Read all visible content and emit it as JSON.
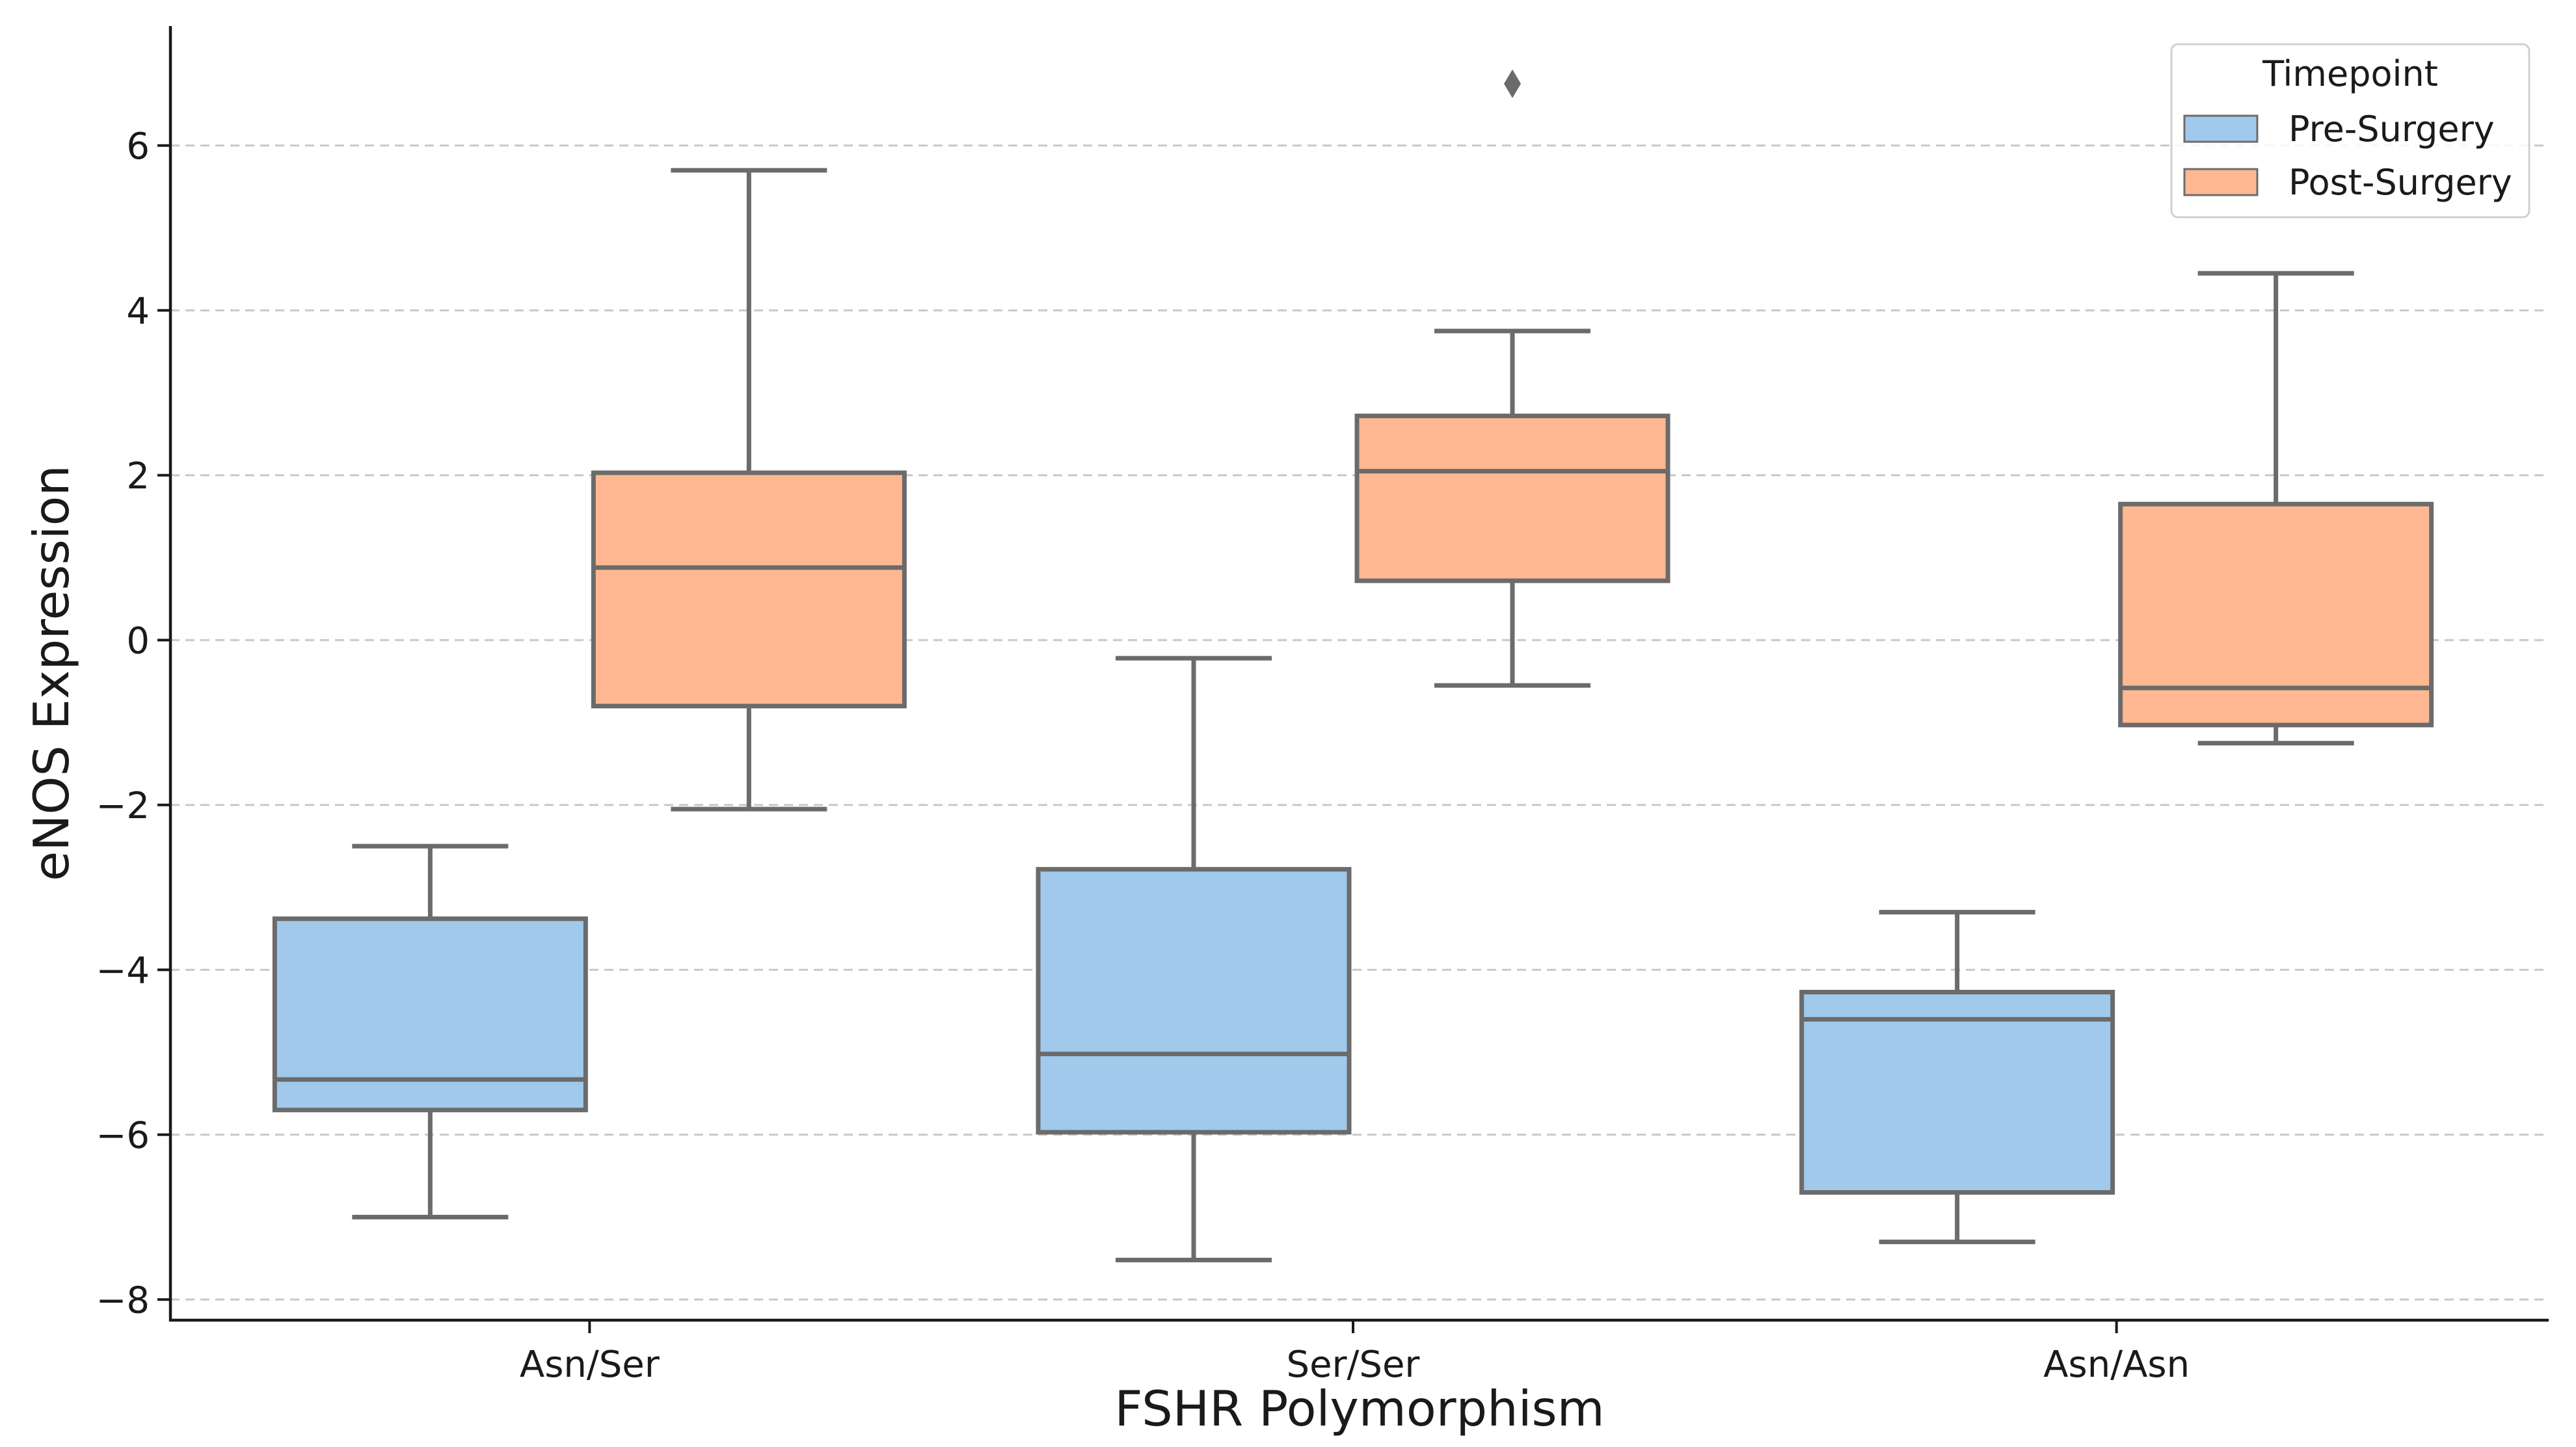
{
  "chart_data": {
    "type": "box",
    "title": "",
    "xlabel": "FSHR Polymorphism",
    "ylabel": "eNOS Expression",
    "ylim": [
      -8.25,
      7.45
    ],
    "yticks": [
      6,
      4,
      2,
      0,
      -2,
      -4,
      -6,
      -8
    ],
    "ytick_labels": [
      "6",
      "4",
      "2",
      "0",
      "−2",
      "−4",
      "−6",
      "−8"
    ],
    "grid": "horizontal dashed",
    "categories": [
      "Asn/Ser",
      "Ser/Ser",
      "Asn/Asn"
    ],
    "legend": {
      "title": "Timepoint",
      "placement": "top-right",
      "entries": [
        "Pre-Surgery",
        "Post-Surgery"
      ]
    },
    "series": [
      {
        "name": "Pre-Surgery",
        "color": "#a0c9ec",
        "boxes": [
          {
            "category": "Asn/Ser",
            "whisker_low": -7.0,
            "q1": -5.7,
            "median": -5.33,
            "q3": -3.38,
            "whisker_high": -2.5,
            "outliers": []
          },
          {
            "category": "Ser/Ser",
            "whisker_low": -7.52,
            "q1": -5.97,
            "median": -5.02,
            "q3": -2.78,
            "whisker_high": -0.22,
            "outliers": []
          },
          {
            "category": "Asn/Asn",
            "whisker_low": -7.3,
            "q1": -6.7,
            "median": -4.6,
            "q3": -4.27,
            "whisker_high": -3.3,
            "outliers": []
          }
        ]
      },
      {
        "name": "Post-Surgery",
        "color": "#ffb891",
        "boxes": [
          {
            "category": "Asn/Ser",
            "whisker_low": -2.05,
            "q1": -0.8,
            "median": 0.88,
            "q3": 2.03,
            "whisker_high": 5.7,
            "outliers": []
          },
          {
            "category": "Ser/Ser",
            "whisker_low": -0.55,
            "q1": 0.72,
            "median": 2.05,
            "q3": 2.72,
            "whisker_high": 3.75,
            "outliers": [
              6.75
            ]
          },
          {
            "category": "Asn/Asn",
            "whisker_low": -1.25,
            "q1": -1.03,
            "median": -0.58,
            "q3": 1.65,
            "whisker_high": 4.45,
            "outliers": []
          }
        ]
      }
    ],
    "colors": {
      "line": "#6b6b6b",
      "grid": "#c8c8c8",
      "axis": "#1a1a1a"
    }
  }
}
